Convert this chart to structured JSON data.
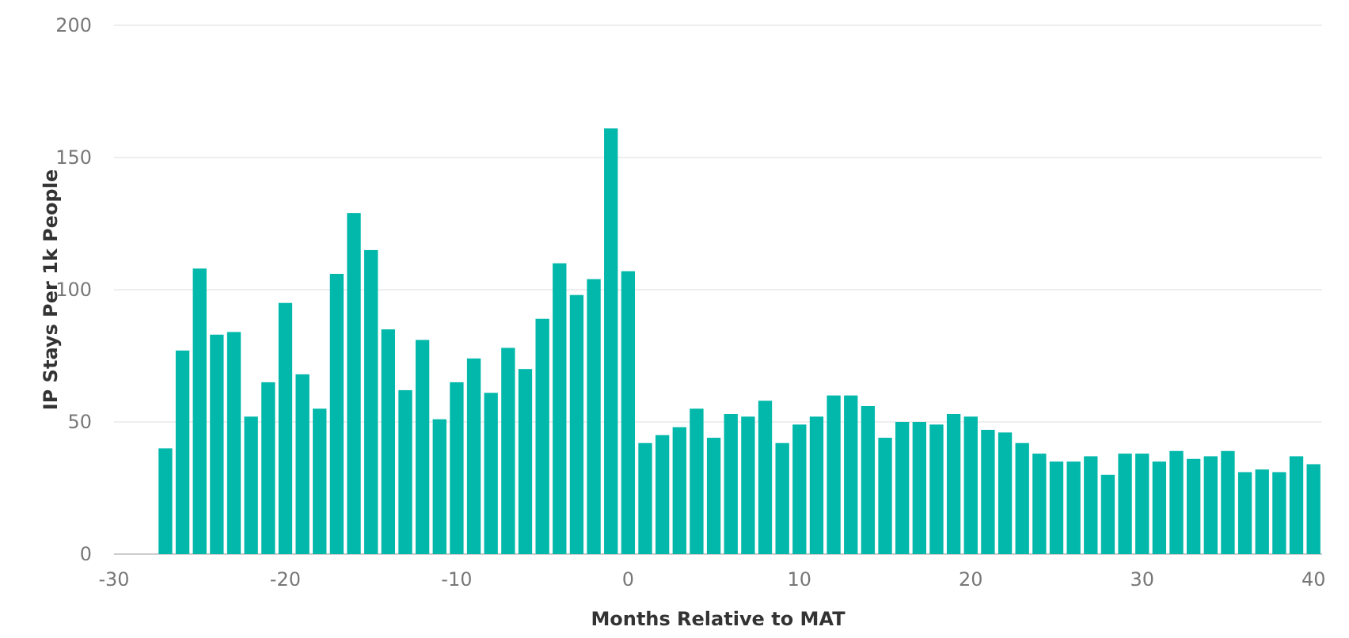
{
  "chart_data": {
    "type": "bar",
    "xlabel": "Months Relative to MAT",
    "ylabel": "IP Stays Per 1k People",
    "x": [
      -27,
      -26,
      -25,
      -24,
      -23,
      -22,
      -21,
      -20,
      -19,
      -18,
      -17,
      -16,
      -15,
      -14,
      -13,
      -12,
      -11,
      -10,
      -9,
      -8,
      -7,
      -6,
      -5,
      -4,
      -3,
      -2,
      -1,
      0,
      1,
      2,
      3,
      4,
      5,
      6,
      7,
      8,
      9,
      10,
      11,
      12,
      13,
      14,
      15,
      16,
      17,
      18,
      19,
      20,
      21,
      22,
      23,
      24,
      25,
      26,
      27,
      28,
      29,
      30,
      31,
      32,
      33,
      34,
      35,
      36,
      37,
      38,
      39,
      40
    ],
    "values": [
      40,
      77,
      108,
      83,
      84,
      52,
      65,
      95,
      68,
      55,
      106,
      129,
      115,
      85,
      62,
      81,
      51,
      65,
      74,
      61,
      78,
      70,
      89,
      110,
      98,
      104,
      161,
      107,
      42,
      45,
      48,
      55,
      44,
      53,
      52,
      58,
      42,
      49,
      52,
      60,
      60,
      56,
      44,
      50,
      50,
      49,
      53,
      52,
      47,
      46,
      42,
      38,
      35,
      35,
      37,
      30,
      38,
      38,
      35,
      39,
      36,
      37,
      39,
      31,
      32,
      31,
      37,
      34
    ],
    "color": "#01b8aa",
    "xlim": [
      -30,
      40.5
    ],
    "xticks": [
      -30,
      -20,
      -10,
      0,
      10,
      20,
      30,
      40
    ],
    "ylim": [
      0,
      200
    ],
    "yticks": [
      0,
      50,
      100,
      150,
      200
    ],
    "grid": "y"
  }
}
